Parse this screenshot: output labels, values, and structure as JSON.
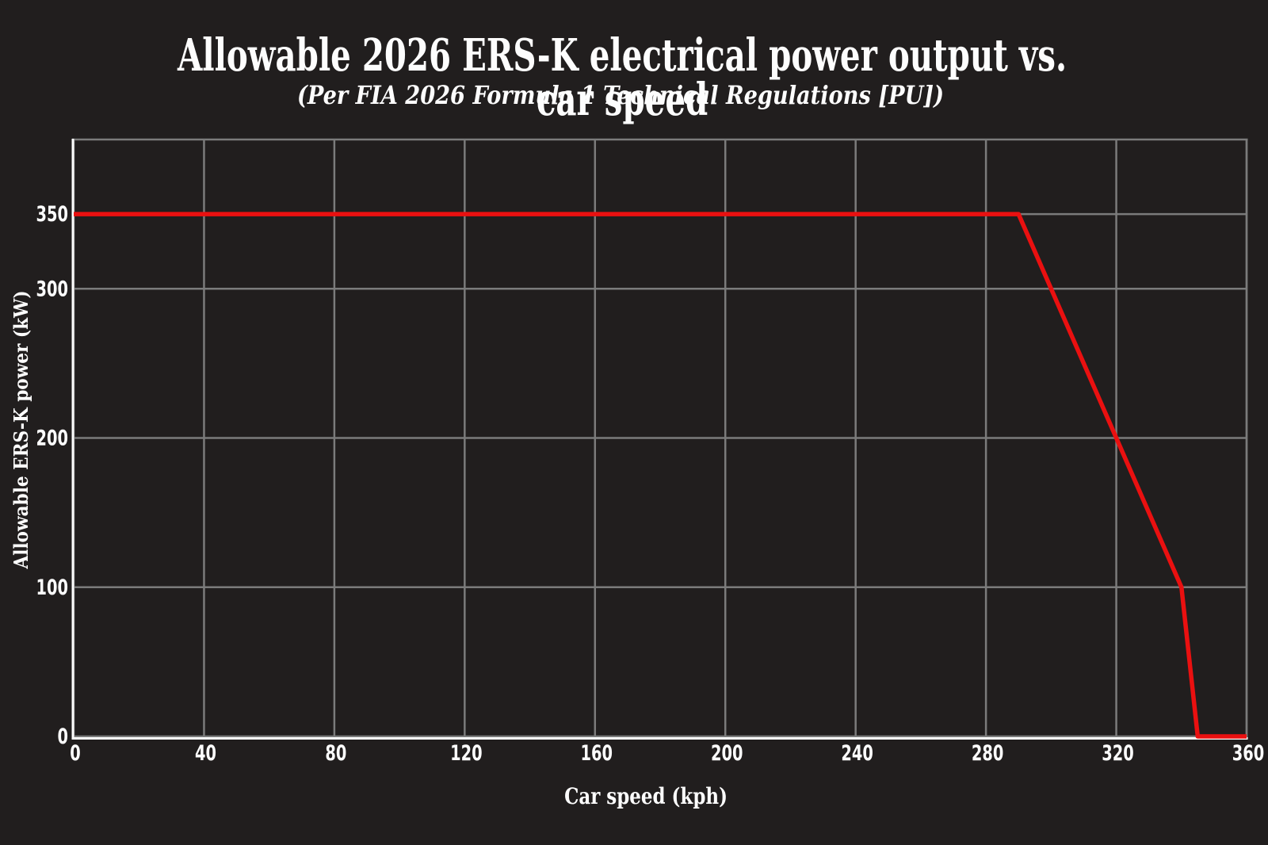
{
  "chart_data": {
    "type": "line",
    "title": "Allowable 2026 ERS-K electrical power output vs. car speed",
    "subtitle": "(Per FIA 2026 Formula 1 Technical Regulations [PU])",
    "xlabel": "Car speed (kph)",
    "ylabel": "Allowable ERS-K power (kW)",
    "xlim": [
      0,
      360
    ],
    "ylim": [
      0,
      400
    ],
    "x_ticks": [
      0,
      40,
      80,
      120,
      160,
      200,
      240,
      280,
      320,
      360
    ],
    "y_ticks": [
      0,
      100,
      200,
      300,
      350
    ],
    "grid": true,
    "legend_position": "none",
    "series": [
      {
        "name": "Allowable ERS-K power",
        "x": [
          0,
          290,
          340,
          345,
          360
        ],
        "y": [
          350,
          350,
          100,
          0,
          0
        ],
        "color": "#ea1010"
      }
    ],
    "annotations": [],
    "colors": {
      "background": "#211e1e",
      "grid": "#7b7b7b",
      "axis_spine": "#fdfdfd",
      "text": "#fdfdfd",
      "line": "#ea1010"
    }
  }
}
